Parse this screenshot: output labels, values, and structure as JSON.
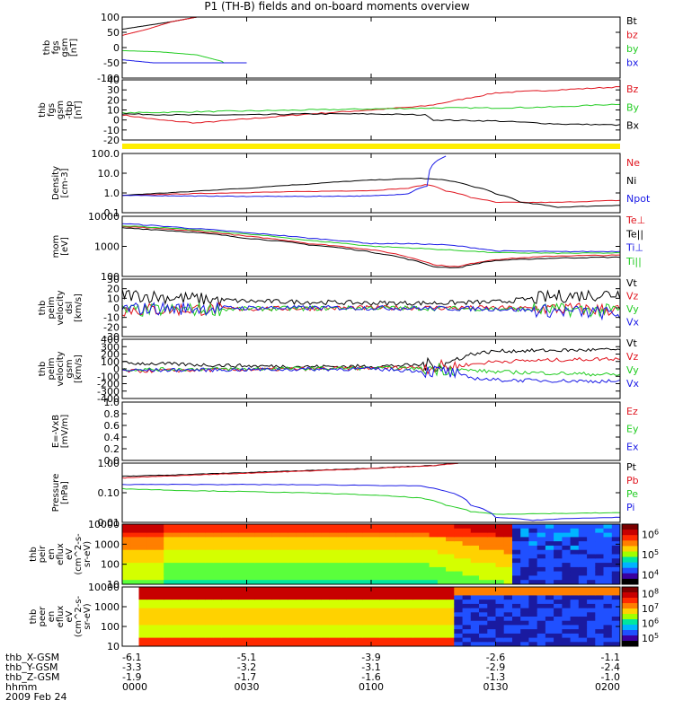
{
  "title": "P1 (TH-B) fields and on-board moments overview",
  "colors": {
    "black": "#000000",
    "red": "#e0141e",
    "green": "#22cc22",
    "blue": "#1a1ae6",
    "yellow": "#ffee00"
  },
  "chart_data": [
    {
      "type": "line",
      "ylabel": [
        "thb",
        "fgs",
        "gsm",
        "[nT]"
      ],
      "ylim": [
        -100,
        100
      ],
      "yticks": [
        "100",
        "50",
        "0",
        "-50",
        "-100"
      ],
      "series": [
        {
          "name": "Bt",
          "color": "black",
          "x": [
            0,
            0.4,
            0.6
          ],
          "y": [
            60,
            85,
            100
          ]
        },
        {
          "name": "bz",
          "color": "red",
          "x": [
            0,
            0.2,
            0.4,
            0.6
          ],
          "y": [
            40,
            60,
            85,
            100
          ]
        },
        {
          "name": "by",
          "color": "green",
          "x": [
            0,
            0.3,
            0.6,
            0.8,
            0.98
          ],
          "y": [
            -10,
            -14,
            -24,
            -45,
            -100
          ]
        },
        {
          "name": "bx",
          "color": "blue",
          "x": [
            0,
            0.2,
            0.5,
            0.8,
            1.0
          ],
          "y": [
            -40,
            -48,
            -60,
            -80,
            -100
          ]
        }
      ]
    },
    {
      "type": "line",
      "ylabel": [
        "thb",
        "fgs",
        "gsm",
        "-tbp",
        "[nT]"
      ],
      "ylim": [
        -20,
        40
      ],
      "yticks": [
        "40",
        "30",
        "20",
        "10",
        "0",
        "-10",
        "-20"
      ],
      "series": [
        {
          "name": "Bz",
          "color": "red",
          "x": [
            0,
            0.3,
            0.6,
            1.0,
            1.5,
            2.0,
            2.45,
            2.7,
            3.0,
            3.5,
            4.0
          ],
          "y": [
            5,
            0,
            -3,
            1,
            6,
            10,
            14,
            20,
            27,
            30,
            33
          ]
        },
        {
          "name": "By",
          "color": "green",
          "x": [
            0,
            0.5,
            1.0,
            1.5,
            2.0,
            2.5,
            3.0,
            3.5,
            4.0
          ],
          "y": [
            7,
            8,
            9,
            10,
            11,
            12,
            12,
            13,
            16
          ]
        },
        {
          "name": "Bx",
          "color": "black",
          "x": [
            0,
            0.5,
            1.0,
            1.5,
            2.0,
            2.45,
            2.5,
            3.0,
            3.5,
            4.0
          ],
          "y": [
            6,
            5,
            5,
            6,
            6,
            5,
            0,
            -1,
            -4,
            -5
          ]
        }
      ]
    },
    {
      "type": "line",
      "ylabel": [
        "Density",
        "[cm-3]"
      ],
      "ylim": [
        0.07,
        300
      ],
      "yscale": "log",
      "yticks": [
        "100.0",
        "10.0",
        "1.0",
        "0.1"
      ],
      "series": [
        {
          "name": "Ne",
          "color": "red",
          "x": [
            0,
            0.5,
            1.0,
            1.5,
            2.0,
            2.3,
            2.45,
            2.6,
            2.8,
            3.0,
            3.5,
            4.0
          ],
          "y": [
            0.8,
            1.0,
            1.2,
            1.4,
            1.6,
            2.2,
            3.8,
            1.5,
            0.6,
            0.3,
            0.3,
            0.4
          ]
        },
        {
          "name": "Ni",
          "color": "black",
          "x": [
            0,
            0.5,
            1.0,
            1.5,
            2.0,
            2.4,
            2.6,
            2.8,
            3.0,
            3.2,
            3.5,
            4.0
          ],
          "y": [
            0.8,
            1.3,
            2.2,
            4.0,
            7.0,
            9.0,
            7.0,
            3.0,
            1.0,
            0.3,
            0.15,
            0.2
          ]
        },
        {
          "name": "Npot",
          "color": "blue",
          "x": [
            0,
            0.5,
            1.0,
            1.5,
            2.0,
            2.3,
            2.45,
            2.6
          ],
          "y": [
            0.8,
            0.75,
            0.7,
            0.7,
            0.75,
            1.0,
            3.0,
            200
          ]
        }
      ]
    },
    {
      "type": "line",
      "ylabel": [
        "mom",
        "[eV]"
      ],
      "ylim": [
        40,
        12000
      ],
      "yscale": "log",
      "yticks": [
        "10000",
        "1000",
        "100"
      ],
      "series": [
        {
          "name": "Te⊥",
          "color": "red",
          "x": [
            0,
            0.5,
            1.0,
            1.5,
            2.0,
            2.3,
            2.5,
            2.7,
            3.0,
            3.5,
            4.0
          ],
          "y": [
            4500,
            3200,
            1800,
            900,
            500,
            250,
            120,
            100,
            200,
            280,
            300
          ]
        },
        {
          "name": "Te||",
          "color": "black",
          "x": [
            0,
            0.5,
            1.0,
            1.5,
            2.0,
            2.3,
            2.5,
            2.7,
            3.0,
            3.5,
            4.0
          ],
          "y": [
            4000,
            2800,
            1500,
            800,
            400,
            200,
            100,
            90,
            180,
            230,
            250
          ]
        },
        {
          "name": "Ti⊥",
          "color": "blue",
          "x": [
            0,
            0.5,
            1.0,
            1.5,
            2.0,
            2.3,
            2.6,
            3.0,
            3.5,
            4.0
          ],
          "y": [
            6000,
            4000,
            2500,
            1500,
            900,
            900,
            800,
            450,
            420,
            430
          ]
        },
        {
          "name": "Ti||",
          "color": "green",
          "x": [
            0,
            0.5,
            1.0,
            1.5,
            2.0,
            2.3,
            2.6,
            3.0,
            3.5,
            4.0
          ],
          "y": [
            5000,
            3500,
            2200,
            1200,
            700,
            600,
            500,
            380,
            360,
            370
          ]
        }
      ]
    },
    {
      "type": "line",
      "ylabel": [
        "thb",
        "peim",
        "velocity",
        "dsl",
        "[km/s]"
      ],
      "ylim": [
        -30,
        30
      ],
      "yticks": [
        "30",
        "20",
        "10",
        "0",
        "-10",
        "-20",
        "-30"
      ],
      "series": [
        {
          "name": "Vt",
          "color": "black",
          "x": [
            0,
            0.5,
            1.0,
            1.5,
            2.0,
            2.5,
            3.0,
            3.5,
            4.0
          ],
          "y": [
            14,
            10,
            7,
            6,
            5,
            5,
            6,
            12,
            15
          ]
        },
        {
          "name": "Vz",
          "color": "red",
          "x": [
            0,
            1.0,
            2.0,
            3.0,
            4.0
          ],
          "y": [
            -2,
            -1,
            0,
            0,
            -2
          ]
        },
        {
          "name": "Vy",
          "color": "green",
          "x": [
            0,
            1.0,
            2.0,
            3.0,
            4.0
          ],
          "y": [
            -3,
            -1,
            0,
            -1,
            -3
          ]
        },
        {
          "name": "Vx",
          "color": "blue",
          "x": [
            0,
            1.0,
            2.0,
            3.0,
            4.0
          ],
          "y": [
            -1,
            0,
            0,
            -1,
            -6
          ]
        }
      ]
    },
    {
      "type": "line",
      "ylabel": [
        "thb",
        "peim",
        "velocity",
        "gsm",
        "[km/s]"
      ],
      "ylim": [
        -400,
        400
      ],
      "yticks": [
        "400",
        "300",
        "200",
        "100",
        "0",
        "-100",
        "-200",
        "-300",
        "-400"
      ],
      "series": [
        {
          "name": "Vt",
          "color": "black",
          "x": [
            0,
            0.5,
            1.0,
            1.5,
            2.0,
            2.6,
            2.8,
            3.0,
            3.5,
            4.0
          ],
          "y": [
            80,
            60,
            40,
            30,
            35,
            60,
            200,
            240,
            250,
            260
          ]
        },
        {
          "name": "Vz",
          "color": "red",
          "x": [
            0,
            0.5,
            1.0,
            1.5,
            2.0,
            2.6,
            2.8,
            3.0,
            3.5,
            4.0
          ],
          "y": [
            -30,
            -20,
            -10,
            0,
            10,
            30,
            60,
            100,
            120,
            140
          ]
        },
        {
          "name": "Vy",
          "color": "green",
          "x": [
            0,
            0.5,
            1.0,
            1.5,
            2.0,
            2.6,
            2.8,
            3.0,
            3.5,
            4.0
          ],
          "y": [
            -10,
            -5,
            0,
            5,
            10,
            0,
            -20,
            -40,
            -60,
            -80
          ]
        },
        {
          "name": "Vx",
          "color": "blue",
          "x": [
            0,
            0.5,
            1.0,
            1.5,
            2.0,
            2.6,
            2.8,
            3.0,
            3.5,
            4.0
          ],
          "y": [
            -20,
            -15,
            -10,
            -5,
            0,
            -40,
            -120,
            -150,
            -160,
            -170
          ]
        }
      ]
    },
    {
      "type": "line",
      "ylabel": [
        "E=-VxB",
        "[mV/m]"
      ],
      "ylim": [
        0,
        1
      ],
      "yticks": [
        "1.0",
        "0.8",
        "0.6",
        "0.4",
        "0.2",
        "0.0"
      ],
      "series": [
        {
          "name": "Ez",
          "color": "red",
          "x": [],
          "y": []
        },
        {
          "name": "Ey",
          "color": "green",
          "x": [],
          "y": []
        },
        {
          "name": "Ex",
          "color": "blue",
          "x": [],
          "y": []
        }
      ]
    },
    {
      "type": "line",
      "ylabel": [
        "Pressure",
        "[nPa]"
      ],
      "ylim": [
        0.003,
        9
      ],
      "yscale": "log",
      "yticks": [
        "1.00",
        "0.10",
        "0.01"
      ],
      "series": [
        {
          "name": "Pt",
          "color": "black",
          "x": [
            0,
            0.5,
            1.0,
            1.5,
            2.0,
            2.5,
            2.7
          ],
          "y": [
            1.5,
            1.9,
            2.5,
            3.3,
            4.5,
            6.5,
            9
          ]
        },
        {
          "name": "Pb",
          "color": "red",
          "x": [
            0,
            0.5,
            1.0,
            1.5,
            2.0,
            2.5,
            2.7
          ],
          "y": [
            1.2,
            1.7,
            2.3,
            3.1,
            4.3,
            6.3,
            9
          ]
        },
        {
          "name": "Pe",
          "color": "green",
          "x": [
            0,
            0.5,
            1.0,
            1.5,
            2.0,
            2.4,
            2.6,
            2.8,
            3.0,
            3.5,
            4.0
          ],
          "y": [
            0.28,
            0.22,
            0.19,
            0.16,
            0.12,
            0.08,
            0.03,
            0.013,
            0.009,
            0.01,
            0.011
          ]
        },
        {
          "name": "Pi",
          "color": "blue",
          "x": [
            0,
            0.5,
            1.0,
            1.5,
            2.0,
            2.4,
            2.6,
            2.8,
            3.0,
            3.3,
            3.6,
            4.0
          ],
          "y": [
            0.5,
            0.5,
            0.5,
            0.48,
            0.45,
            0.4,
            0.2,
            0.03,
            0.006,
            0.004,
            0.005,
            0.006
          ]
        }
      ]
    },
    {
      "type": "heatmap",
      "ylabel": [
        "thb",
        "peir",
        "en",
        "eflux",
        "eV",
        "(cm^2-s-",
        "sr-eV)"
      ],
      "yticks": [
        "10000",
        "1000",
        "100",
        "10"
      ],
      "colorbar": {
        "ticks": [
          "10^6",
          "10^5",
          "10^4"
        ]
      }
    },
    {
      "type": "heatmap",
      "ylabel": [
        "thb",
        "peer",
        "en",
        "eflux",
        "eV",
        "(cm^2-s-",
        "sr-eV)"
      ],
      "yticks": [
        "10000",
        "1000",
        "100",
        "10"
      ],
      "colorbar": {
        "ticks": [
          "10^8",
          "10^7",
          "10^6",
          "10^5"
        ]
      }
    }
  ],
  "xaxis": {
    "rows": [
      {
        "label": "thb_X-GSM",
        "values": [
          "-6.1",
          "-5.1",
          "-3.9",
          "-2.6",
          "-1.1"
        ]
      },
      {
        "label": "thb_Y-GSM",
        "values": [
          "-3.3",
          "-3.2",
          "-3.1",
          "-2.9",
          "-2.4"
        ]
      },
      {
        "label": "thb_Z-GSM",
        "values": [
          "-1.9",
          "-1.7",
          "-1.6",
          "-1.3",
          "-1.0"
        ]
      },
      {
        "label": "hhmm",
        "values": [
          "0000",
          "0030",
          "0100",
          "0130",
          "0200"
        ]
      }
    ],
    "date": "2009 Feb 24"
  }
}
